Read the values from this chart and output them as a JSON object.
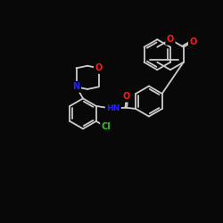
{
  "bg": "#080808",
  "bc": "#cccccc",
  "lw": 1.3,
  "colors": {
    "O": "#ff1a1a",
    "N": "#2222ff",
    "Cl": "#22cc22",
    "C": "#cccccc"
  },
  "fs": 7.0,
  "fig": [
    2.5,
    2.5
  ],
  "dpi": 100,
  "xlim": [
    0,
    10
  ],
  "ylim": [
    0,
    10
  ]
}
